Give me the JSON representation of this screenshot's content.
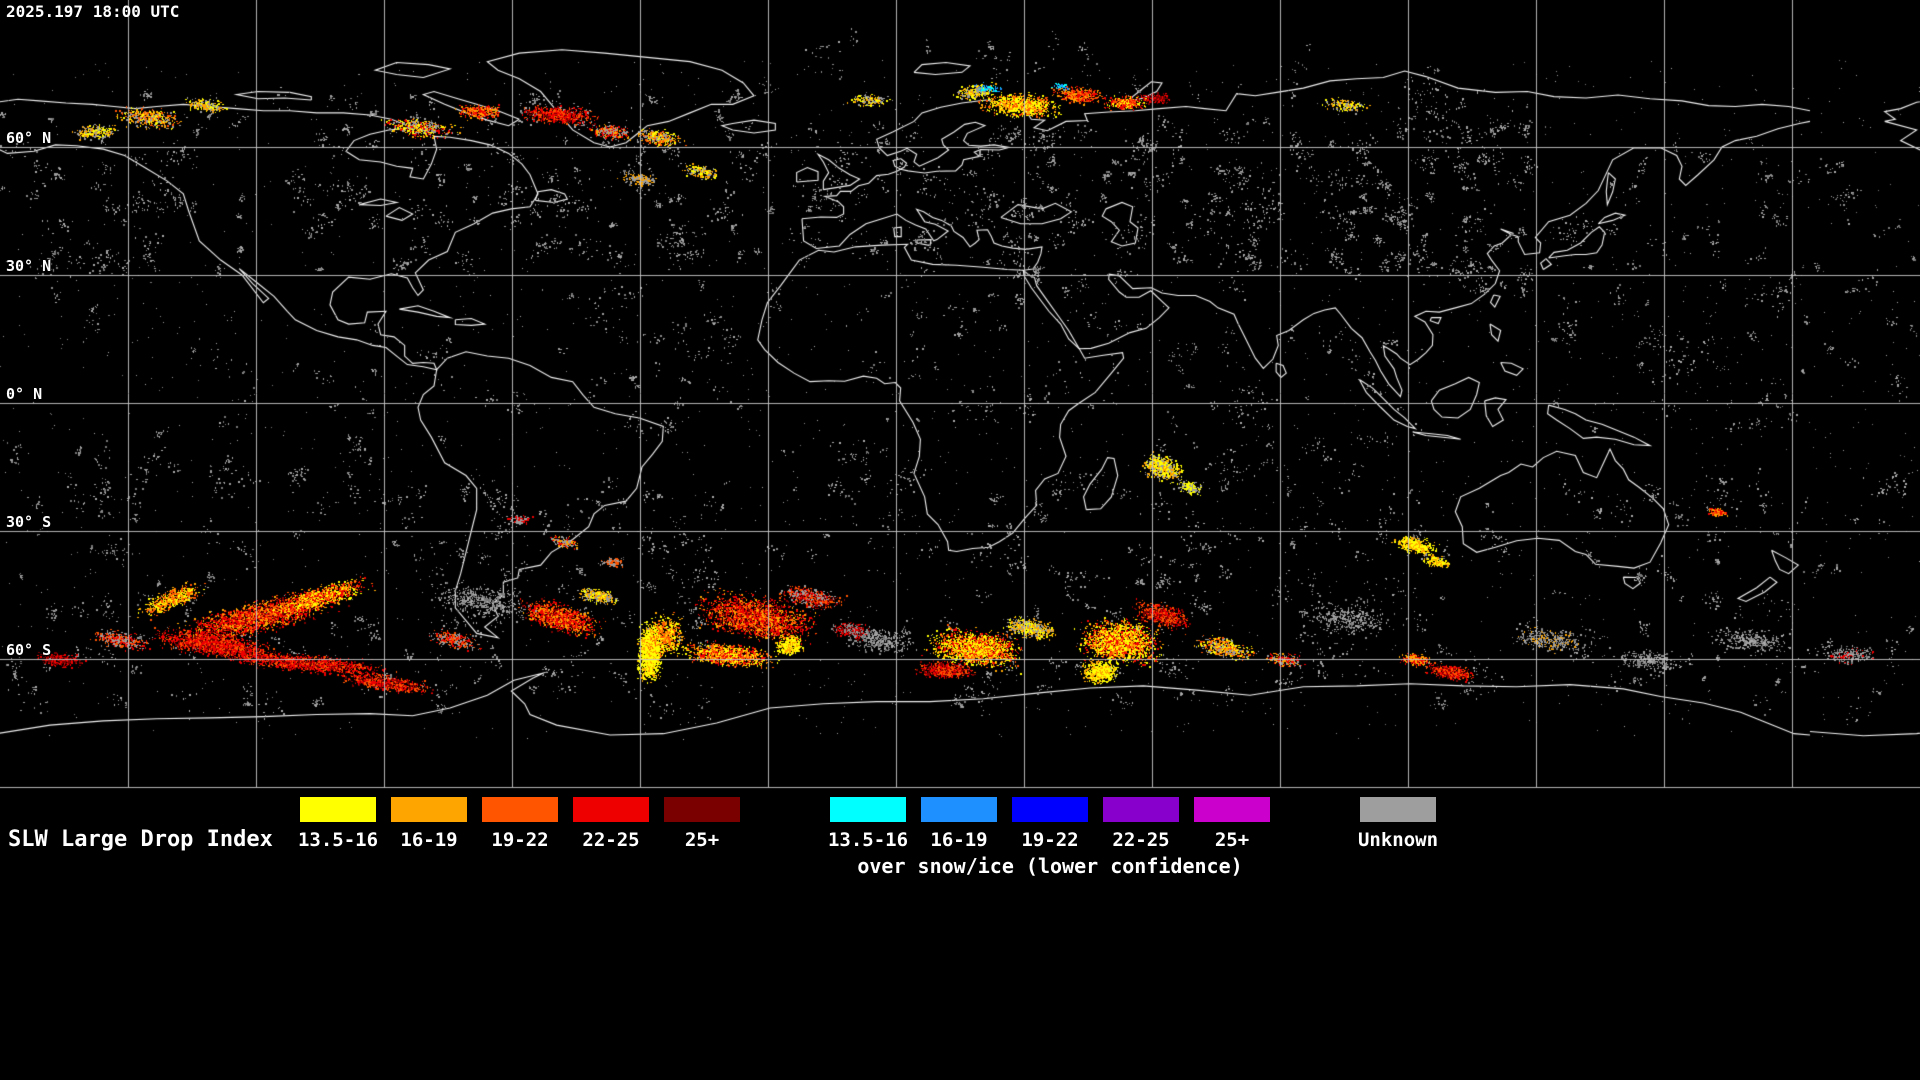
{
  "header": {
    "timestamp": "2025.197 18:00 UTC"
  },
  "map": {
    "latitude_labels": [
      "60° N",
      "30° N",
      "0° N",
      "30° S",
      "60° S"
    ]
  },
  "legend": {
    "title": "SLW Large Drop Index",
    "standard": [
      {
        "label": "13.5-16",
        "color": "#ffff00"
      },
      {
        "label": "16-19",
        "color": "#ffa500"
      },
      {
        "label": "19-22",
        "color": "#ff5500"
      },
      {
        "label": "22-25",
        "color": "#ee0000"
      },
      {
        "label": "25+",
        "color": "#7a0000"
      }
    ],
    "snow_ice": {
      "caption": "over snow/ice (lower confidence)",
      "items": [
        {
          "label": "13.5-16",
          "color": "#00ffff"
        },
        {
          "label": "16-19",
          "color": "#1e90ff"
        },
        {
          "label": "19-22",
          "color": "#0000ff"
        },
        {
          "label": "22-25",
          "color": "#8800cc"
        },
        {
          "label": "25+",
          "color": "#cc00cc"
        }
      ]
    },
    "unknown": {
      "label": "Unknown",
      "color": "#9e9e9e"
    },
    "colors": {
      "grid": "#c9c9c9",
      "coast": "#ffffff",
      "background": "#000000"
    }
  }
}
